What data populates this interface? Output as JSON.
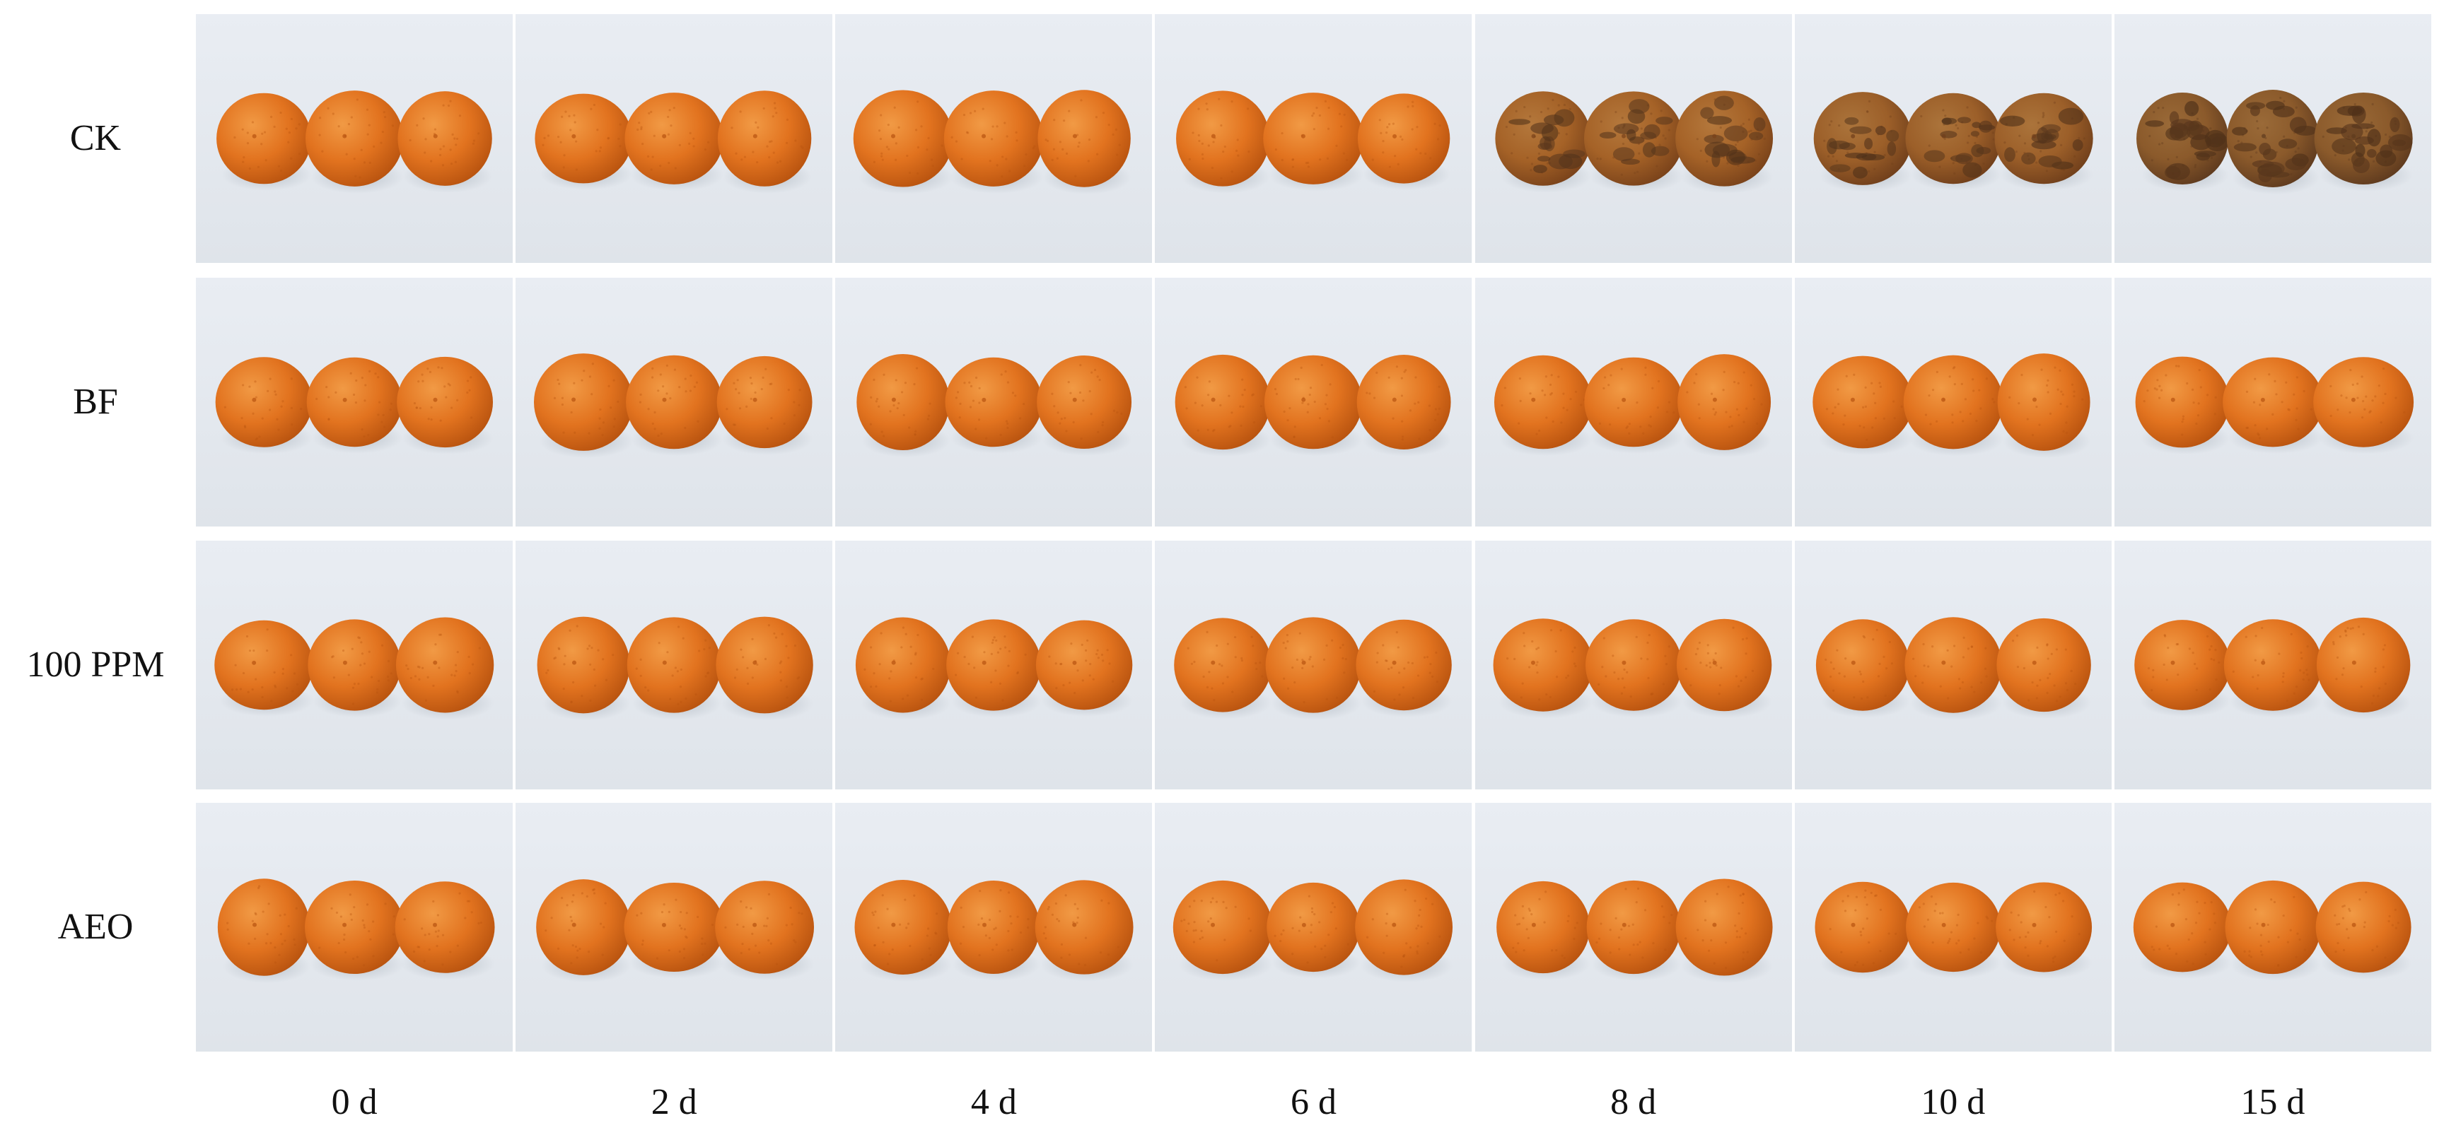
{
  "figure": {
    "rows": [
      {
        "label": "CK"
      },
      {
        "label": "BF"
      },
      {
        "label": "100 PPM"
      },
      {
        "label": "AEO"
      }
    ],
    "columns": [
      {
        "label": "0 d"
      },
      {
        "label": "2 d"
      },
      {
        "label": "4 d"
      },
      {
        "label": "6 d"
      },
      {
        "label": "8 d"
      },
      {
        "label": "10 d"
      },
      {
        "label": "15 d"
      }
    ],
    "colors": {
      "background_light": "#e9edf3",
      "background_dark": "#dfe4ea",
      "fruit_fresh": "#e2731f",
      "fruit_fresh_highlight": "#f19a45",
      "fruit_fresh_shadow": "#b8530f",
      "fruit_decay": "#8b5a2b",
      "fruit_decay_dark": "#5e3a1e"
    },
    "cells_decay": [
      [
        0,
        0,
        0,
        0,
        0.7,
        0.8,
        1
      ],
      [
        0,
        0,
        0,
        0,
        0,
        0,
        0
      ],
      [
        0,
        0,
        0,
        0,
        0,
        0,
        0
      ],
      [
        0,
        0,
        0,
        0,
        0,
        0,
        0
      ]
    ]
  }
}
